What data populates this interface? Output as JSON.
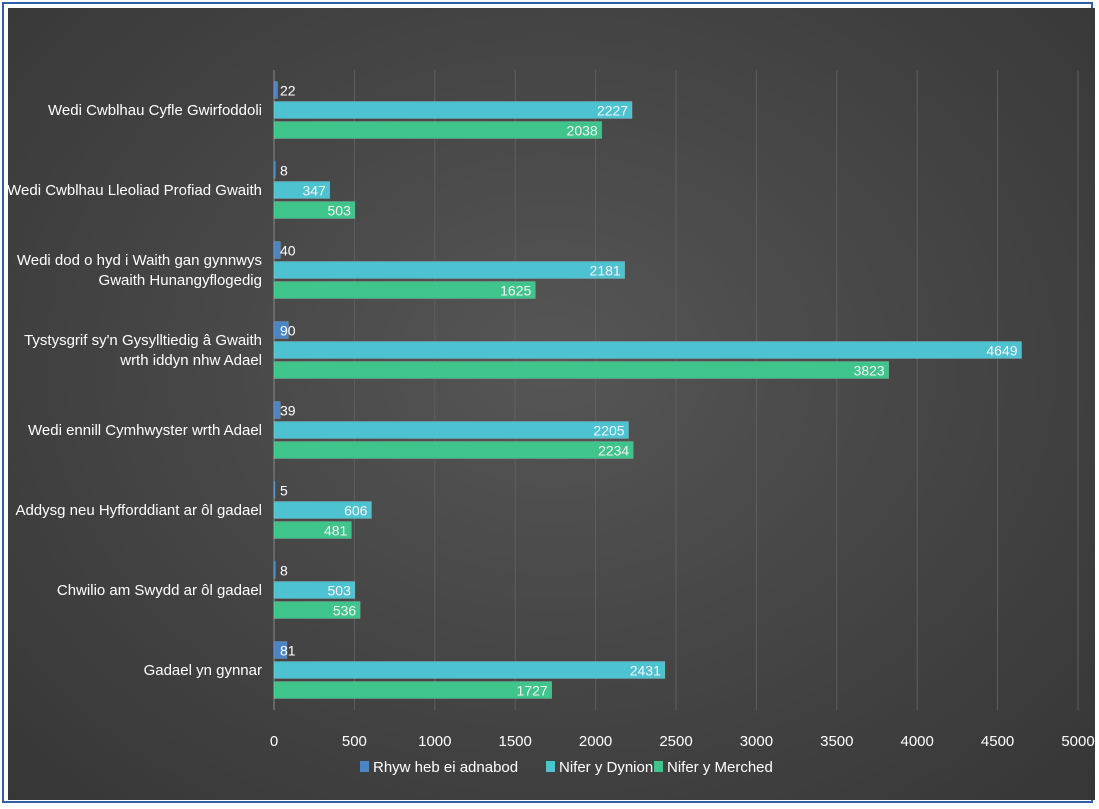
{
  "chart_data": {
    "type": "bar",
    "orientation": "horizontal",
    "categories": [
      [
        "Wedi Cwblhau Cyfle Gwirfoddoli"
      ],
      [
        "Wedi Cwblhau Lleoliad Profiad Gwaith"
      ],
      [
        "Wedi dod o hyd i Waith gan gynnwys",
        "Gwaith Hunangyflogedig"
      ],
      [
        "Tystysgrif sy'n Gysylltiedig â Gwaith",
        "wrth iddyn nhw Adael"
      ],
      [
        "Wedi ennill Cymhwyster wrth Adael"
      ],
      [
        "Addysg neu Hyfforddiant ar ôl gadael"
      ],
      [
        "Chwilio am Swydd ar ôl gadael"
      ],
      [
        "Gadael yn gynnar"
      ]
    ],
    "series": [
      {
        "name": "Rhyw heb ei adnabod",
        "color": "#4a86c5",
        "values": [
          22,
          8,
          40,
          90,
          39,
          5,
          8,
          81
        ]
      },
      {
        "name": "Nifer y Dynion",
        "color": "#4dc3d2",
        "values": [
          2227,
          347,
          2181,
          4649,
          2205,
          606,
          503,
          2431
        ]
      },
      {
        "name": "Nifer y Merched",
        "color": "#3fc48c",
        "values": [
          2038,
          503,
          1625,
          3823,
          2234,
          481,
          536,
          1727
        ]
      }
    ],
    "xlim": [
      0,
      5000
    ],
    "x_ticks": [
      "0",
      "500",
      "1000",
      "1500",
      "2000",
      "2500",
      "3000",
      "3500",
      "4000",
      "4500",
      "5000"
    ],
    "grid": true,
    "legend_position": "bottom"
  }
}
